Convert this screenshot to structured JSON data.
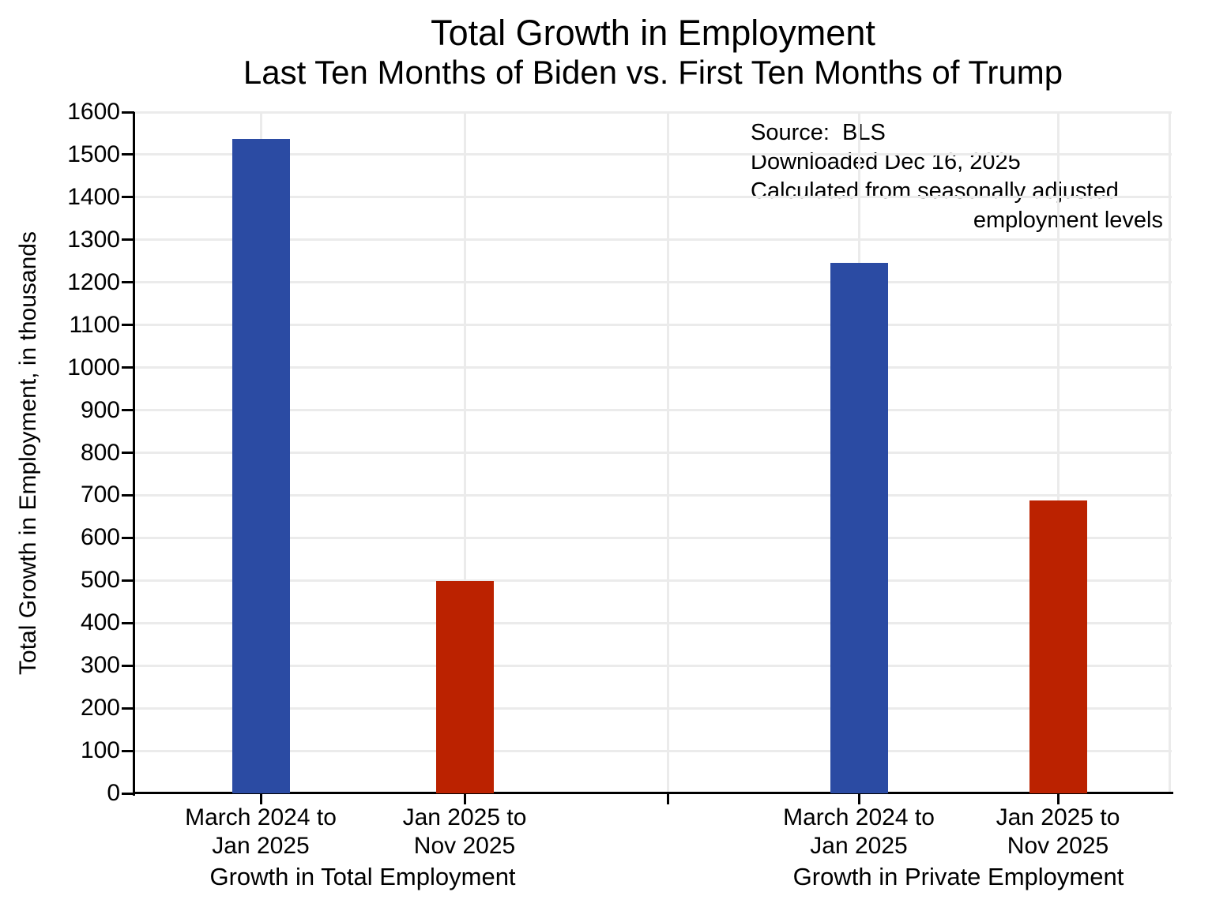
{
  "chart_data": {
    "type": "bar",
    "title": "Total Growth in Employment",
    "subtitle": "Last Ten Months of Biden vs. First Ten Months of Trump",
    "ylabel": "Total Growth in Employment, in thousands",
    "xlabel": "",
    "ylim": [
      0,
      1600
    ],
    "ytick_step": 100,
    "grid": true,
    "gridline_color": "#ebebeb",
    "bar_colors": {
      "biden": "#2b4ba3",
      "trump": "#bb2200"
    },
    "groups": [
      {
        "label": "Growth in Total Employment",
        "bars": [
          {
            "category_lines": [
              "March 2024 to",
              "Jan 2025"
            ],
            "value": 1537,
            "series": "biden"
          },
          {
            "category_lines": [
              "Jan 2025 to",
              "Nov 2025"
            ],
            "value": 499,
            "series": "trump"
          }
        ]
      },
      {
        "label": "Growth in Private Employment",
        "bars": [
          {
            "category_lines": [
              "March 2024 to",
              "Jan 2025"
            ],
            "value": 1245,
            "series": "biden"
          },
          {
            "category_lines": [
              "Jan 2025 to",
              "Nov 2025"
            ],
            "value": 688,
            "series": "trump"
          }
        ]
      }
    ],
    "annotations": [
      "Source:  BLS",
      "Downloaded Dec 16, 2025",
      "Calculated from seasonally adjusted",
      "employment levels"
    ]
  }
}
